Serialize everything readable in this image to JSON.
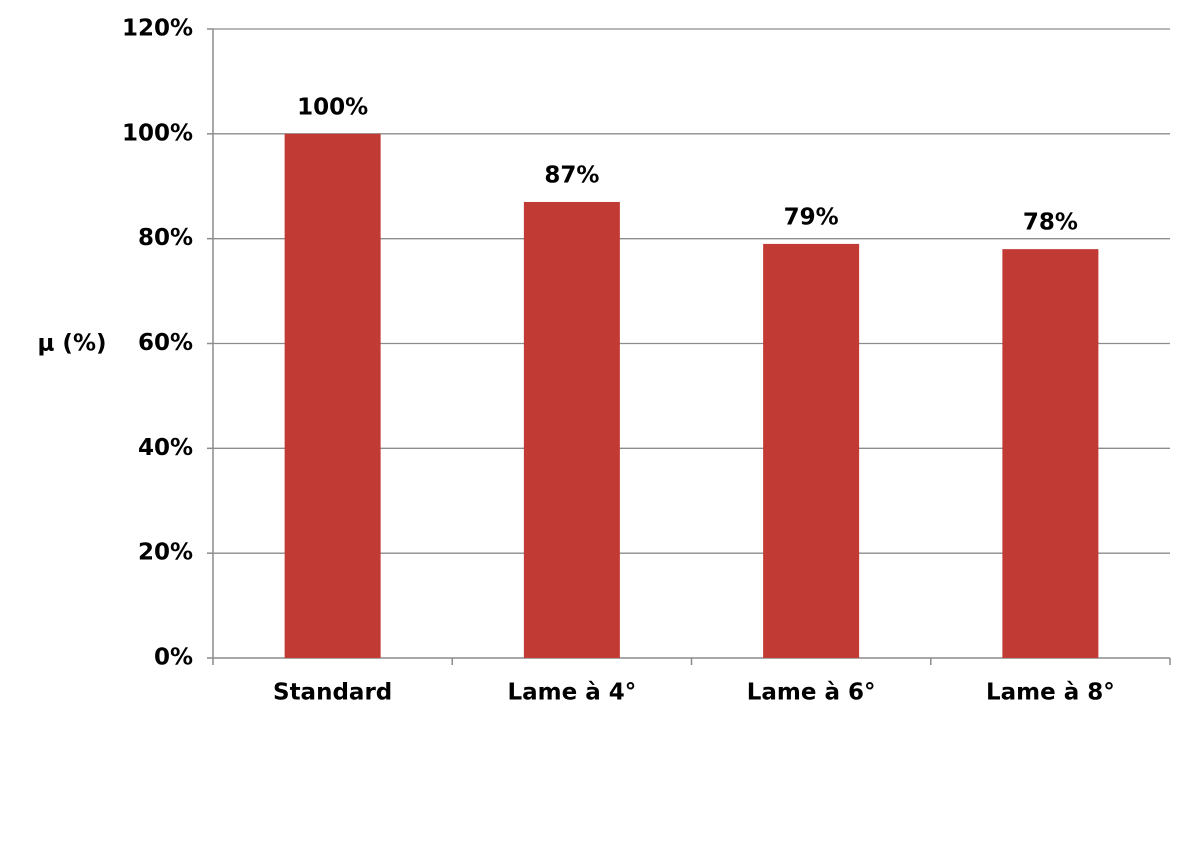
{
  "chart_data": {
    "type": "bar",
    "y_label": "μ (%)",
    "categories": [
      "Standard",
      "Lame à 4°",
      "Lame à 6°",
      "Lame à 8°"
    ],
    "values": [
      100,
      87,
      79,
      78
    ],
    "value_labels": [
      "100%",
      "87%",
      "79%",
      "78%"
    ],
    "color": "#c23a34",
    "value_label_color": "#c00000",
    "ylim": [
      0,
      120
    ],
    "yticks": [
      {
        "value": 0,
        "label": "0%"
      },
      {
        "value": 20,
        "label": "20%"
      },
      {
        "value": 40,
        "label": "40%"
      },
      {
        "value": 60,
        "label": "60%"
      },
      {
        "value": 80,
        "label": "80%"
      },
      {
        "value": 100,
        "label": "100%"
      },
      {
        "value": 120,
        "label": "120%"
      }
    ],
    "grid": true
  }
}
